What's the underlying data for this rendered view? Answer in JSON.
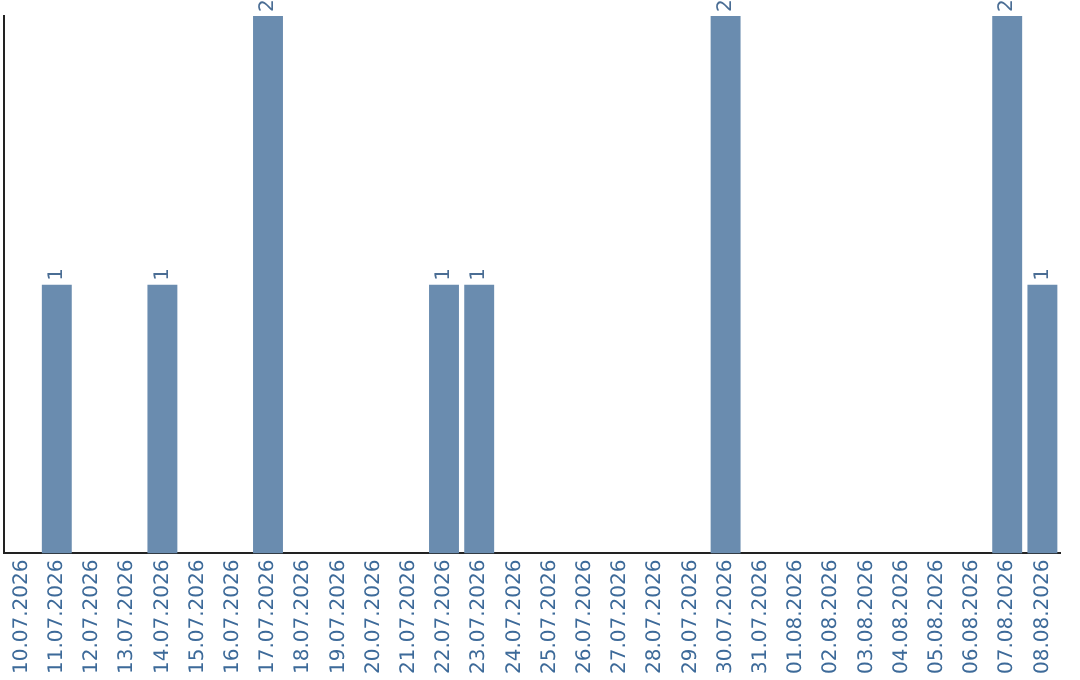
{
  "chart_data": {
    "type": "bar",
    "categories": [
      "10.07.2026",
      "11.07.2026",
      "12.07.2026",
      "13.07.2026",
      "14.07.2026",
      "15.07.2026",
      "16.07.2026",
      "17.07.2026",
      "18.07.2026",
      "19.07.2026",
      "20.07.2026",
      "21.07.2026",
      "22.07.2026",
      "23.07.2026",
      "24.07.2026",
      "25.07.2026",
      "26.07.2026",
      "27.07.2026",
      "28.07.2026",
      "29.07.2026",
      "30.07.2026",
      "31.07.2026",
      "01.08.2026",
      "02.08.2026",
      "03.08.2026",
      "04.08.2026",
      "05.08.2026",
      "06.08.2026",
      "07.08.2026",
      "08.08.2026"
    ],
    "values": [
      0,
      1,
      0,
      0,
      1,
      0,
      0,
      2,
      0,
      0,
      0,
      0,
      1,
      1,
      0,
      0,
      0,
      0,
      0,
      0,
      2,
      0,
      0,
      0,
      0,
      0,
      0,
      0,
      2,
      1
    ],
    "value_labels": [
      null,
      "1",
      null,
      null,
      "1",
      null,
      null,
      "2",
      null,
      null,
      null,
      null,
      "1",
      "1",
      null,
      null,
      null,
      null,
      null,
      null,
      "2",
      null,
      null,
      null,
      null,
      null,
      null,
      null,
      "2",
      "1"
    ],
    "color": "#6a8caf",
    "grid": false,
    "legend": false,
    "tick_labels": "x"
  }
}
